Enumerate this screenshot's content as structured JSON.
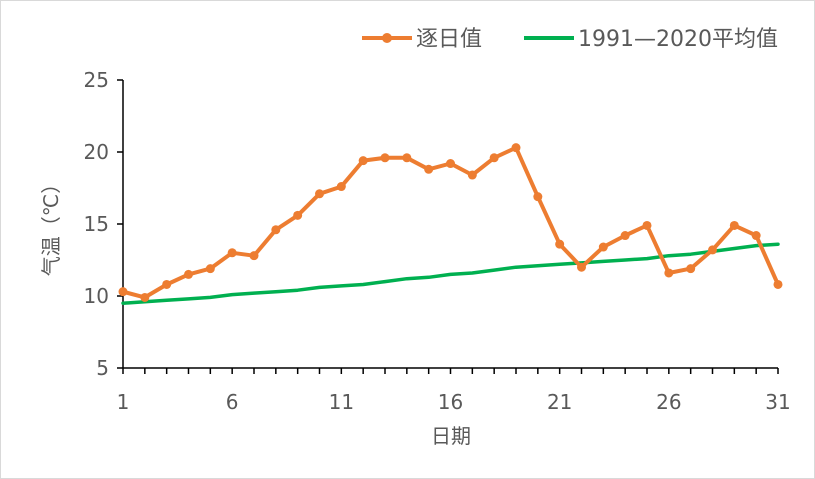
{
  "chart_data": {
    "type": "line",
    "title": "",
    "xlabel": "日期",
    "ylabel": "气温（℃）",
    "xlim": [
      1,
      31
    ],
    "ylim": [
      5,
      25
    ],
    "x_ticks": [
      1,
      6,
      11,
      16,
      21,
      26,
      31
    ],
    "y_ticks": [
      5,
      10,
      15,
      20,
      25
    ],
    "grid": false,
    "legend_position": "top",
    "x": [
      1,
      2,
      3,
      4,
      5,
      6,
      7,
      8,
      9,
      10,
      11,
      12,
      13,
      14,
      15,
      16,
      17,
      18,
      19,
      20,
      21,
      22,
      23,
      24,
      25,
      26,
      27,
      28,
      29,
      30,
      31
    ],
    "series": [
      {
        "name": "逐日值",
        "color": "#ed7d31",
        "marker": "circle",
        "values": [
          10.3,
          9.9,
          10.8,
          11.5,
          11.9,
          13.0,
          12.8,
          14.6,
          15.6,
          17.1,
          17.6,
          19.4,
          19.6,
          19.6,
          18.8,
          19.2,
          18.4,
          19.6,
          20.3,
          16.9,
          13.6,
          12.0,
          13.4,
          14.2,
          14.9,
          11.6,
          11.9,
          13.2,
          14.9,
          14.2,
          10.8
        ]
      },
      {
        "name": "1991—2020平均值",
        "color": "#00b050",
        "marker": "none",
        "values": [
          9.5,
          9.6,
          9.7,
          9.8,
          9.9,
          10.1,
          10.2,
          10.3,
          10.4,
          10.6,
          10.7,
          10.8,
          11.0,
          11.2,
          11.3,
          11.5,
          11.6,
          11.8,
          12.0,
          12.1,
          12.2,
          12.3,
          12.4,
          12.5,
          12.6,
          12.8,
          12.9,
          13.1,
          13.3,
          13.5,
          13.6
        ]
      }
    ]
  }
}
